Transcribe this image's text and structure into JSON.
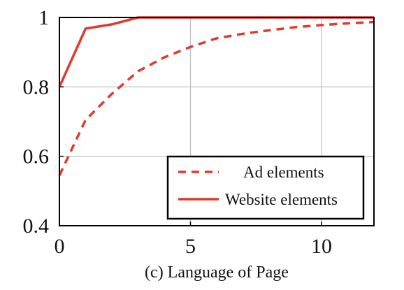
{
  "caption": "(c) Language of Page",
  "chart_data": {
    "type": "line",
    "title": "",
    "xlabel": "",
    "ylabel": "",
    "xlim": [
      0,
      12
    ],
    "ylim": [
      0.4,
      1.0
    ],
    "xticks": [
      0,
      5,
      10
    ],
    "yticks": [
      0.4,
      0.6,
      0.8,
      1.0
    ],
    "xtick_labels": [
      "0",
      "5",
      "10"
    ],
    "ytick_labels": [
      "0.4",
      "0.6",
      "0.8",
      "1"
    ],
    "grid": true,
    "legend_position": "bottom-right",
    "series": [
      {
        "name": "Ad elements",
        "style": "dashed",
        "color": "#e03a30",
        "x": [
          0,
          1,
          2,
          3,
          4,
          5,
          6,
          7,
          8,
          9,
          10,
          11,
          12
        ],
        "y": [
          0.545,
          0.705,
          0.78,
          0.845,
          0.885,
          0.915,
          0.94,
          0.953,
          0.963,
          0.972,
          0.978,
          0.983,
          0.987
        ]
      },
      {
        "name": "Website elements",
        "style": "solid",
        "color": "#e03a30",
        "x": [
          0,
          1,
          2,
          3,
          4,
          5,
          6,
          7,
          8,
          9,
          10,
          11,
          12
        ],
        "y": [
          0.8,
          0.968,
          0.98,
          1.0,
          1.0,
          1.0,
          1.0,
          1.0,
          1.0,
          1.0,
          1.0,
          1.0,
          1.0
        ]
      }
    ]
  }
}
